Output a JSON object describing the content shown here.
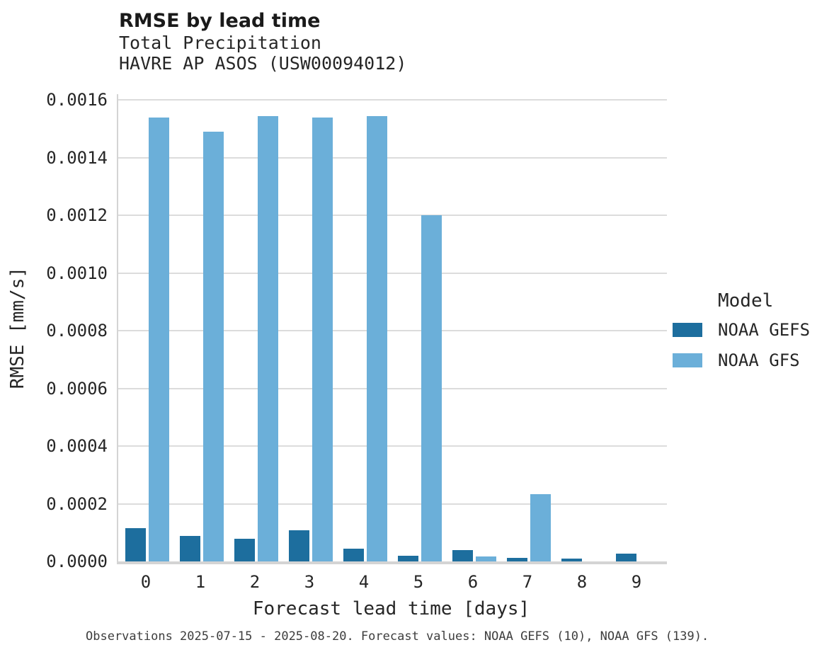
{
  "header": {
    "title": "RMSE by lead time",
    "subtitle_variable": "Total Precipitation",
    "subtitle_station": "HAVRE AP ASOS (USW00094012)"
  },
  "chart_data": {
    "type": "bar",
    "title": "RMSE by lead time",
    "subtitle": "Total Precipitation — HAVRE AP ASOS (USW00094012)",
    "categories": [
      "0",
      "1",
      "2",
      "3",
      "4",
      "5",
      "6",
      "7",
      "8",
      "9"
    ],
    "series": [
      {
        "name": "NOAA GEFS",
        "color": "#1d6e9e",
        "values": [
          0.000115,
          8.8e-05,
          7.8e-05,
          0.000108,
          4.4e-05,
          2e-05,
          4e-05,
          1.2e-05,
          1e-05,
          2.6e-05
        ]
      },
      {
        "name": "NOAA GFS",
        "color": "#6bafd9",
        "values": [
          0.00154,
          0.00149,
          0.001545,
          0.00154,
          0.001545,
          0.0012,
          1.6e-05,
          0.000233,
          0,
          0
        ]
      }
    ],
    "xlabel": "Forecast lead time [days]",
    "ylabel": "RMSE [mm/s]",
    "ylim": [
      0,
      0.00162
    ],
    "yticks": [
      0,
      0.0002,
      0.0004,
      0.0006,
      0.0008,
      0.001,
      0.0012,
      0.0014,
      0.0016
    ],
    "ytick_labels": [
      "0.0000",
      "0.0002",
      "0.0004",
      "0.0006",
      "0.0008",
      "0.0010",
      "0.0012",
      "0.0014",
      "0.0016"
    ],
    "grid": true,
    "legend_title": "Model",
    "legend_position": "right"
  },
  "legend": {
    "title": "Model",
    "entries": [
      {
        "label": "NOAA GEFS",
        "color": "#1d6e9e"
      },
      {
        "label": "NOAA GFS",
        "color": "#6bafd9"
      }
    ]
  },
  "footer": {
    "caption": "Observations 2025-07-15 - 2025-08-20. Forecast values: NOAA GEFS (10), NOAA GFS (139)."
  }
}
